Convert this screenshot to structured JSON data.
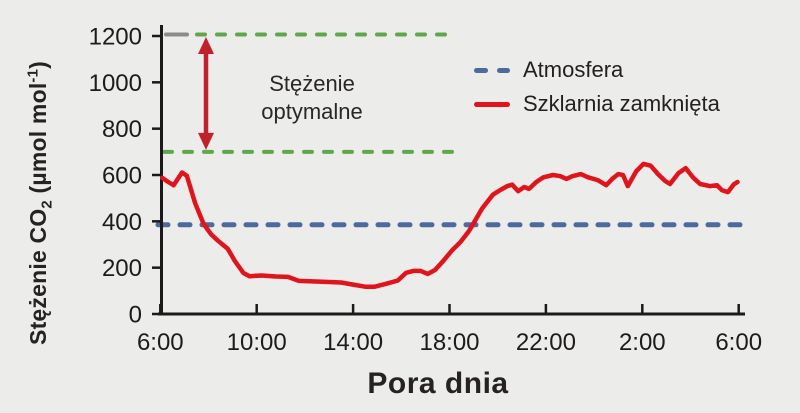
{
  "figure": {
    "background": "#ECECEA",
    "ylabel_parts": {
      "pre": "Stężenie CO",
      "sub": "2",
      "mid": " (µmol mol",
      "sup": "-1",
      "post": ")"
    },
    "xlabel": "Pora dnia",
    "annotation": {
      "line1": "Stężenie",
      "line2": "optymalne"
    },
    "legend": [
      {
        "label": "Atmosfera",
        "color": "#4E6A9D",
        "style": "dashed"
      },
      {
        "label": "Szklarnia zamknięta",
        "color": "#E0141C",
        "style": "solid"
      }
    ]
  },
  "chart_data": {
    "type": "line",
    "title": "",
    "xlabel": "Pora dnia",
    "ylabel": "Stężenie CO₂ (µmol mol⁻¹)",
    "x_tick_labels": [
      "6:00",
      "10:00",
      "14:00",
      "18:00",
      "22:00",
      "2:00",
      "6:00"
    ],
    "x_tick_hours": [
      6,
      10,
      14,
      18,
      22,
      26,
      30
    ],
    "y_ticks": [
      0,
      200,
      400,
      600,
      800,
      1000,
      1200
    ],
    "ylim": [
      0,
      1250
    ],
    "xlim_hours": [
      6,
      30
    ],
    "grid": false,
    "legend_position": "top-right",
    "axis_color": "#1C191A",
    "tick_label_color": "#1E1B1C",
    "series": [
      {
        "name": "Atmosfera",
        "type": "constant",
        "value": 385,
        "color": "#4E6A9D",
        "dash": true
      },
      {
        "name": "Szklarnia zamknięta",
        "type": "line",
        "color": "#E0141C",
        "dash": false,
        "points_hour_value": [
          [
            6.08,
            588
          ],
          [
            6.3,
            572
          ],
          [
            6.55,
            556
          ],
          [
            6.9,
            611
          ],
          [
            7.1,
            597
          ],
          [
            7.45,
            478
          ],
          [
            7.8,
            388
          ],
          [
            8.1,
            345
          ],
          [
            8.4,
            316
          ],
          [
            8.8,
            281
          ],
          [
            9.1,
            228
          ],
          [
            9.45,
            177
          ],
          [
            9.7,
            163
          ],
          [
            10.2,
            166
          ],
          [
            10.8,
            162
          ],
          [
            11.3,
            160
          ],
          [
            11.75,
            143
          ],
          [
            12.6,
            140
          ],
          [
            13.5,
            136
          ],
          [
            14.0,
            127
          ],
          [
            14.5,
            118
          ],
          [
            14.9,
            118
          ],
          [
            15.35,
            130
          ],
          [
            15.85,
            144
          ],
          [
            16.2,
            178
          ],
          [
            16.5,
            186
          ],
          [
            16.8,
            186
          ],
          [
            17.1,
            173
          ],
          [
            17.4,
            190
          ],
          [
            17.75,
            230
          ],
          [
            18.1,
            274
          ],
          [
            18.45,
            310
          ],
          [
            18.8,
            357
          ],
          [
            19.0,
            392
          ],
          [
            19.35,
            455
          ],
          [
            19.8,
            515
          ],
          [
            20.1,
            535
          ],
          [
            20.4,
            552
          ],
          [
            20.6,
            558
          ],
          [
            20.85,
            530
          ],
          [
            21.1,
            548
          ],
          [
            21.3,
            540
          ],
          [
            21.6,
            570
          ],
          [
            21.9,
            590
          ],
          [
            22.3,
            600
          ],
          [
            22.6,
            595
          ],
          [
            22.85,
            583
          ],
          [
            23.1,
            595
          ],
          [
            23.45,
            604
          ],
          [
            23.75,
            590
          ],
          [
            24.15,
            578
          ],
          [
            24.5,
            556
          ],
          [
            24.75,
            583
          ],
          [
            25.0,
            604
          ],
          [
            25.2,
            600
          ],
          [
            25.4,
            552
          ],
          [
            25.75,
            617
          ],
          [
            26.05,
            648
          ],
          [
            26.35,
            640
          ],
          [
            26.65,
            604
          ],
          [
            26.95,
            574
          ],
          [
            27.15,
            561
          ],
          [
            27.5,
            608
          ],
          [
            27.8,
            630
          ],
          [
            28.1,
            590
          ],
          [
            28.4,
            561
          ],
          [
            28.8,
            552
          ],
          [
            29.1,
            556
          ],
          [
            29.3,
            535
          ],
          [
            29.55,
            526
          ],
          [
            29.8,
            560
          ],
          [
            29.95,
            570
          ]
        ]
      }
    ],
    "optimal_range": {
      "label": "Stężenie optymalne",
      "low": 700,
      "high": 1200,
      "line_color": "#5FA849",
      "arrow_color": "#C2212B",
      "gray_cap_color": "#8B8B8B"
    }
  }
}
